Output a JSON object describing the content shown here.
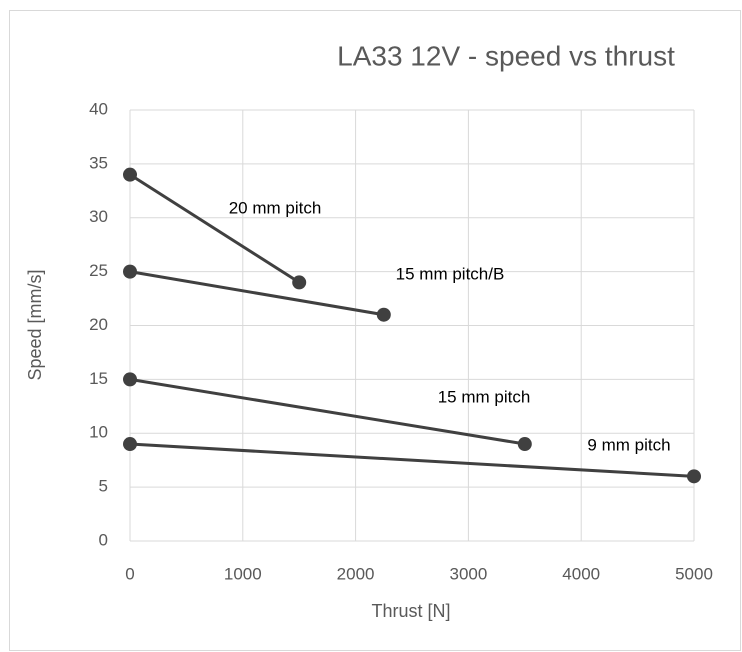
{
  "chart_data": {
    "type": "line",
    "title": "LA33 12V - speed vs thrust",
    "x_label": "Thrust [N]",
    "y_label": "Speed [mm/s]",
    "xlim": [
      0,
      5000
    ],
    "xticks": [
      0,
      1000,
      2000,
      3000,
      4000,
      5000
    ],
    "ylim": [
      0,
      40
    ],
    "yticks": [
      0,
      5,
      10,
      15,
      20,
      25,
      30,
      35,
      40
    ],
    "grid": true,
    "series": [
      {
        "name": "20 mm pitch",
        "color": "#404040",
        "x": [
          0,
          1500
        ],
        "values": [
          34,
          24
        ]
      },
      {
        "name": "15 mm pitch/B",
        "color": "#404040",
        "x": [
          0,
          2250
        ],
        "values": [
          25,
          21
        ]
      },
      {
        "name": "15 mm pitch",
        "color": "#404040",
        "x": [
          0,
          3500
        ],
        "values": [
          15,
          9
        ]
      },
      {
        "name": "9 mm pitch",
        "color": "#404040",
        "x": [
          0,
          5000
        ],
        "values": [
          9,
          6
        ]
      }
    ]
  }
}
